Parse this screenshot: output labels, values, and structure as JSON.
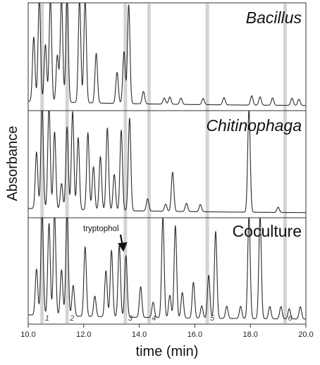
{
  "chart_data": {
    "type": "line",
    "xlabel": "time (min)",
    "ylabel": "Absorbance",
    "xlim": [
      10.0,
      20.0
    ],
    "x_ticks": [
      "10.0",
      "12.0",
      "14.0",
      "16.0",
      "18.0",
      "20.0"
    ],
    "x_tick_values": [
      10,
      12,
      14,
      16,
      18,
      20
    ],
    "grid": false,
    "marker_color": "#d4d4d4",
    "line_color": "#2a2a2a",
    "markers": [
      {
        "label": "1",
        "x": 10.5
      },
      {
        "label": "2",
        "x": 11.4
      },
      {
        "label": "3",
        "x": 13.5
      },
      {
        "label": "4",
        "x": 14.35
      },
      {
        "label": "5",
        "x": 16.45
      },
      {
        "label": "6",
        "x": 19.25
      }
    ],
    "panels": [
      {
        "label": "Bacillus",
        "label_italic": true,
        "baseline": 0.05,
        "peaks": [
          {
            "x": 10.2,
            "h": 0.62
          },
          {
            "x": 10.4,
            "h": 1.0
          },
          {
            "x": 10.62,
            "h": 0.55
          },
          {
            "x": 10.8,
            "h": 1.0
          },
          {
            "x": 11.05,
            "h": 0.45
          },
          {
            "x": 11.2,
            "h": 1.0
          },
          {
            "x": 11.4,
            "h": 1.0
          },
          {
            "x": 11.85,
            "h": 1.0
          },
          {
            "x": 12.05,
            "h": 1.0
          },
          {
            "x": 12.45,
            "h": 0.48
          },
          {
            "x": 13.2,
            "h": 0.3
          },
          {
            "x": 13.45,
            "h": 0.5
          },
          {
            "x": 13.62,
            "h": 0.95
          },
          {
            "x": 14.15,
            "h": 0.12
          },
          {
            "x": 14.9,
            "h": 0.06
          },
          {
            "x": 15.1,
            "h": 0.07
          },
          {
            "x": 15.5,
            "h": 0.06
          },
          {
            "x": 16.3,
            "h": 0.06
          },
          {
            "x": 17.05,
            "h": 0.07
          },
          {
            "x": 18.05,
            "h": 0.09
          },
          {
            "x": 18.35,
            "h": 0.08
          },
          {
            "x": 18.8,
            "h": 0.07
          },
          {
            "x": 19.5,
            "h": 0.07
          },
          {
            "x": 19.75,
            "h": 0.06
          }
        ]
      },
      {
        "label": "Chitinophaga",
        "label_italic": true,
        "baseline": 0.05,
        "peaks": [
          {
            "x": 10.3,
            "h": 0.55
          },
          {
            "x": 10.5,
            "h": 1.0
          },
          {
            "x": 10.75,
            "h": 1.0
          },
          {
            "x": 10.95,
            "h": 0.75
          },
          {
            "x": 11.2,
            "h": 0.25
          },
          {
            "x": 11.4,
            "h": 0.8
          },
          {
            "x": 11.6,
            "h": 0.95
          },
          {
            "x": 11.8,
            "h": 0.7
          },
          {
            "x": 12.15,
            "h": 0.75
          },
          {
            "x": 12.35,
            "h": 0.42
          },
          {
            "x": 12.6,
            "h": 0.52
          },
          {
            "x": 12.85,
            "h": 0.8
          },
          {
            "x": 13.1,
            "h": 0.35
          },
          {
            "x": 13.35,
            "h": 0.78
          },
          {
            "x": 13.65,
            "h": 0.9
          },
          {
            "x": 14.3,
            "h": 0.12
          },
          {
            "x": 14.95,
            "h": 0.07
          },
          {
            "x": 15.2,
            "h": 0.38
          },
          {
            "x": 15.7,
            "h": 0.08
          },
          {
            "x": 16.2,
            "h": 0.07
          },
          {
            "x": 17.95,
            "h": 1.0
          },
          {
            "x": 19.0,
            "h": 0.05
          }
        ]
      },
      {
        "label": "Coculture",
        "label_italic": false,
        "baseline": 0.05,
        "annotation": {
          "text": "tryptophol",
          "x": 13.35
        },
        "peaks": [
          {
            "x": 10.3,
            "h": 0.45
          },
          {
            "x": 10.5,
            "h": 1.0
          },
          {
            "x": 10.75,
            "h": 0.9
          },
          {
            "x": 10.95,
            "h": 1.0
          },
          {
            "x": 11.2,
            "h": 0.45
          },
          {
            "x": 11.4,
            "h": 1.0
          },
          {
            "x": 11.62,
            "h": 0.3
          },
          {
            "x": 12.05,
            "h": 0.68
          },
          {
            "x": 12.4,
            "h": 0.2
          },
          {
            "x": 12.8,
            "h": 0.45
          },
          {
            "x": 13.0,
            "h": 0.65
          },
          {
            "x": 13.28,
            "h": 0.7
          },
          {
            "x": 13.52,
            "h": 0.6
          },
          {
            "x": 14.05,
            "h": 0.3
          },
          {
            "x": 14.5,
            "h": 0.15
          },
          {
            "x": 14.85,
            "h": 0.98
          },
          {
            "x": 15.1,
            "h": 0.22
          },
          {
            "x": 15.3,
            "h": 0.9
          },
          {
            "x": 15.55,
            "h": 0.25
          },
          {
            "x": 15.95,
            "h": 0.35
          },
          {
            "x": 16.25,
            "h": 0.12
          },
          {
            "x": 16.5,
            "h": 0.42
          },
          {
            "x": 16.75,
            "h": 0.85
          },
          {
            "x": 17.15,
            "h": 0.12
          },
          {
            "x": 17.65,
            "h": 0.12
          },
          {
            "x": 17.95,
            "h": 1.0
          },
          {
            "x": 18.35,
            "h": 1.0
          },
          {
            "x": 18.7,
            "h": 0.12
          },
          {
            "x": 19.1,
            "h": 0.12
          },
          {
            "x": 19.4,
            "h": 0.1
          },
          {
            "x": 19.8,
            "h": 0.12
          }
        ]
      }
    ]
  }
}
